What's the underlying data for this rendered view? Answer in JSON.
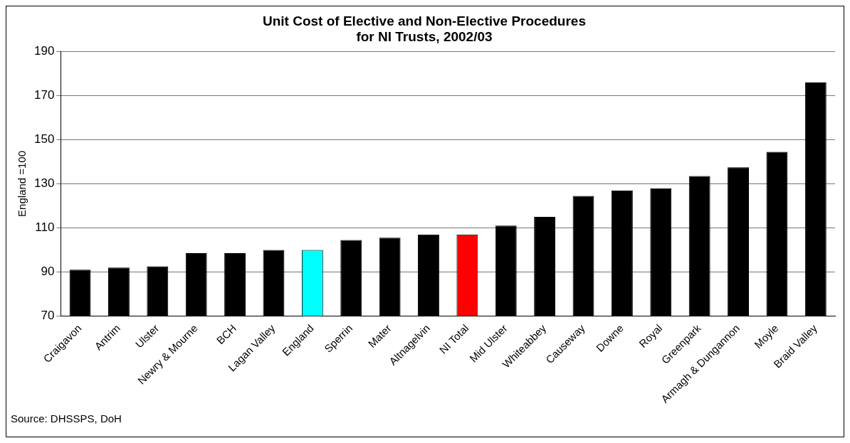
{
  "chart_data": {
    "type": "bar",
    "title": [
      "Unit Cost of Elective and Non-Elective Procedures",
      "for NI Trusts, 2002/03"
    ],
    "ylabel": "England =100",
    "categories": [
      "Craigavon",
      "Antrim",
      "Ulster",
      "Newry & Mourne",
      "BCH",
      "Lagan Valley",
      "England",
      "Sperrin",
      "Mater",
      "Altnagelvin",
      "NI Total",
      "Mid Ulster",
      "Whiteabbey",
      "Causeway",
      "Downe",
      "Royal",
      "Greenpark",
      "Armagh & Dungannon",
      "Moyle",
      "Braid Valley"
    ],
    "values": [
      91,
      92,
      92.5,
      98.5,
      98.5,
      100,
      100,
      104.5,
      105.5,
      107,
      107,
      111,
      115,
      124.5,
      127,
      128,
      133.5,
      137.5,
      144.5,
      176
    ],
    "colors": [
      "#000000",
      "#000000",
      "#000000",
      "#000000",
      "#000000",
      "#000000",
      "#00ffff",
      "#000000",
      "#000000",
      "#000000",
      "#ff0000",
      "#000000",
      "#000000",
      "#000000",
      "#000000",
      "#000000",
      "#000000",
      "#000000",
      "#000000",
      "#000000"
    ],
    "ylim": [
      70,
      190
    ],
    "yticks": [
      70,
      90,
      110,
      130,
      150,
      170,
      190
    ],
    "grid": "y",
    "legend": false,
    "annotations": [
      "Source: DHSSPS, DoH"
    ]
  }
}
